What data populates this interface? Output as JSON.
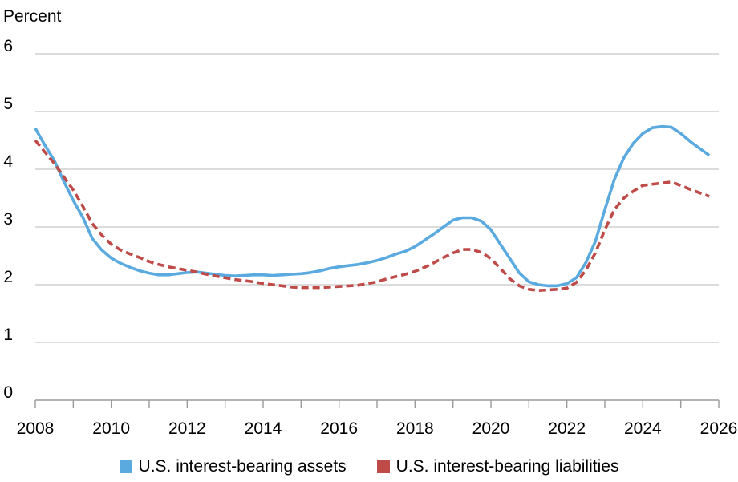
{
  "chart_data": {
    "type": "line",
    "ylabel": "Percent",
    "xlabel": "",
    "xlim": [
      2008,
      2026
    ],
    "ylim": [
      0,
      6
    ],
    "x_ticks": [
      "2008",
      "2010",
      "2012",
      "2014",
      "2016",
      "2018",
      "2020",
      "2022",
      "2024",
      "2026"
    ],
    "y_ticks": [
      "0",
      "1",
      "2",
      "3",
      "4",
      "5",
      "6"
    ],
    "grid": "horizontal",
    "legend_position": "bottom",
    "series": [
      {
        "name": "U.S. interest-bearing assets",
        "color": "#5aaae0",
        "style": "solid",
        "x": [
          2008.0,
          2008.25,
          2008.5,
          2008.75,
          2009.0,
          2009.25,
          2009.5,
          2009.75,
          2010.0,
          2010.25,
          2010.5,
          2010.75,
          2011.0,
          2011.25,
          2011.5,
          2011.75,
          2012.0,
          2012.25,
          2012.5,
          2012.75,
          2013.0,
          2013.25,
          2013.5,
          2013.75,
          2014.0,
          2014.25,
          2014.5,
          2014.75,
          2015.0,
          2015.25,
          2015.5,
          2015.75,
          2016.0,
          2016.25,
          2016.5,
          2016.75,
          2017.0,
          2017.25,
          2017.5,
          2017.75,
          2018.0,
          2018.25,
          2018.5,
          2018.75,
          2019.0,
          2019.25,
          2019.5,
          2019.75,
          2020.0,
          2020.25,
          2020.5,
          2020.75,
          2021.0,
          2021.25,
          2021.5,
          2021.75,
          2022.0,
          2022.25,
          2022.5,
          2022.75,
          2023.0,
          2023.25,
          2023.5,
          2023.75,
          2024.0,
          2024.25,
          2024.5,
          2024.75,
          2025.0,
          2025.25,
          2025.5,
          2025.75
        ],
        "values": [
          4.71,
          4.42,
          4.15,
          3.79,
          3.46,
          3.17,
          2.8,
          2.6,
          2.46,
          2.37,
          2.3,
          2.24,
          2.2,
          2.17,
          2.17,
          2.19,
          2.21,
          2.22,
          2.2,
          2.18,
          2.16,
          2.15,
          2.16,
          2.17,
          2.17,
          2.16,
          2.17,
          2.18,
          2.19,
          2.21,
          2.24,
          2.28,
          2.31,
          2.33,
          2.35,
          2.38,
          2.42,
          2.47,
          2.53,
          2.58,
          2.66,
          2.77,
          2.88,
          3.0,
          3.12,
          3.16,
          3.16,
          3.1,
          2.95,
          2.7,
          2.45,
          2.2,
          2.05,
          2.0,
          1.98,
          1.98,
          2.02,
          2.12,
          2.38,
          2.75,
          3.3,
          3.82,
          4.2,
          4.45,
          4.62,
          4.72,
          4.74,
          4.73,
          4.62,
          4.48,
          4.36,
          4.24
        ]
      },
      {
        "name": "U.S. interest-bearing liabilities",
        "color": "#be4b48",
        "style": "dashed",
        "x": [
          2008.0,
          2008.25,
          2008.5,
          2008.75,
          2009.0,
          2009.25,
          2009.5,
          2009.75,
          2010.0,
          2010.25,
          2010.5,
          2010.75,
          2011.0,
          2011.25,
          2011.5,
          2011.75,
          2012.0,
          2012.25,
          2012.5,
          2012.75,
          2013.0,
          2013.25,
          2013.5,
          2013.75,
          2014.0,
          2014.25,
          2014.5,
          2014.75,
          2015.0,
          2015.25,
          2015.5,
          2015.75,
          2016.0,
          2016.25,
          2016.5,
          2016.75,
          2017.0,
          2017.25,
          2017.5,
          2017.75,
          2018.0,
          2018.25,
          2018.5,
          2018.75,
          2019.0,
          2019.25,
          2019.5,
          2019.75,
          2020.0,
          2020.25,
          2020.5,
          2020.75,
          2021.0,
          2021.25,
          2021.5,
          2021.75,
          2022.0,
          2022.25,
          2022.5,
          2022.75,
          2023.0,
          2023.25,
          2023.5,
          2023.75,
          2024.0,
          2024.25,
          2024.5,
          2024.75,
          2025.0,
          2025.25,
          2025.5,
          2025.75
        ],
        "values": [
          4.5,
          4.3,
          4.1,
          3.87,
          3.64,
          3.36,
          3.06,
          2.86,
          2.7,
          2.6,
          2.53,
          2.47,
          2.4,
          2.35,
          2.31,
          2.28,
          2.25,
          2.22,
          2.18,
          2.15,
          2.12,
          2.09,
          2.07,
          2.05,
          2.02,
          2.0,
          1.98,
          1.96,
          1.95,
          1.95,
          1.95,
          1.96,
          1.97,
          1.98,
          1.99,
          2.02,
          2.05,
          2.1,
          2.14,
          2.18,
          2.23,
          2.3,
          2.38,
          2.47,
          2.55,
          2.61,
          2.61,
          2.56,
          2.45,
          2.28,
          2.1,
          1.98,
          1.92,
          1.9,
          1.91,
          1.92,
          1.94,
          2.04,
          2.25,
          2.55,
          2.95,
          3.3,
          3.5,
          3.62,
          3.72,
          3.74,
          3.76,
          3.78,
          3.72,
          3.65,
          3.59,
          3.53
        ]
      }
    ]
  }
}
